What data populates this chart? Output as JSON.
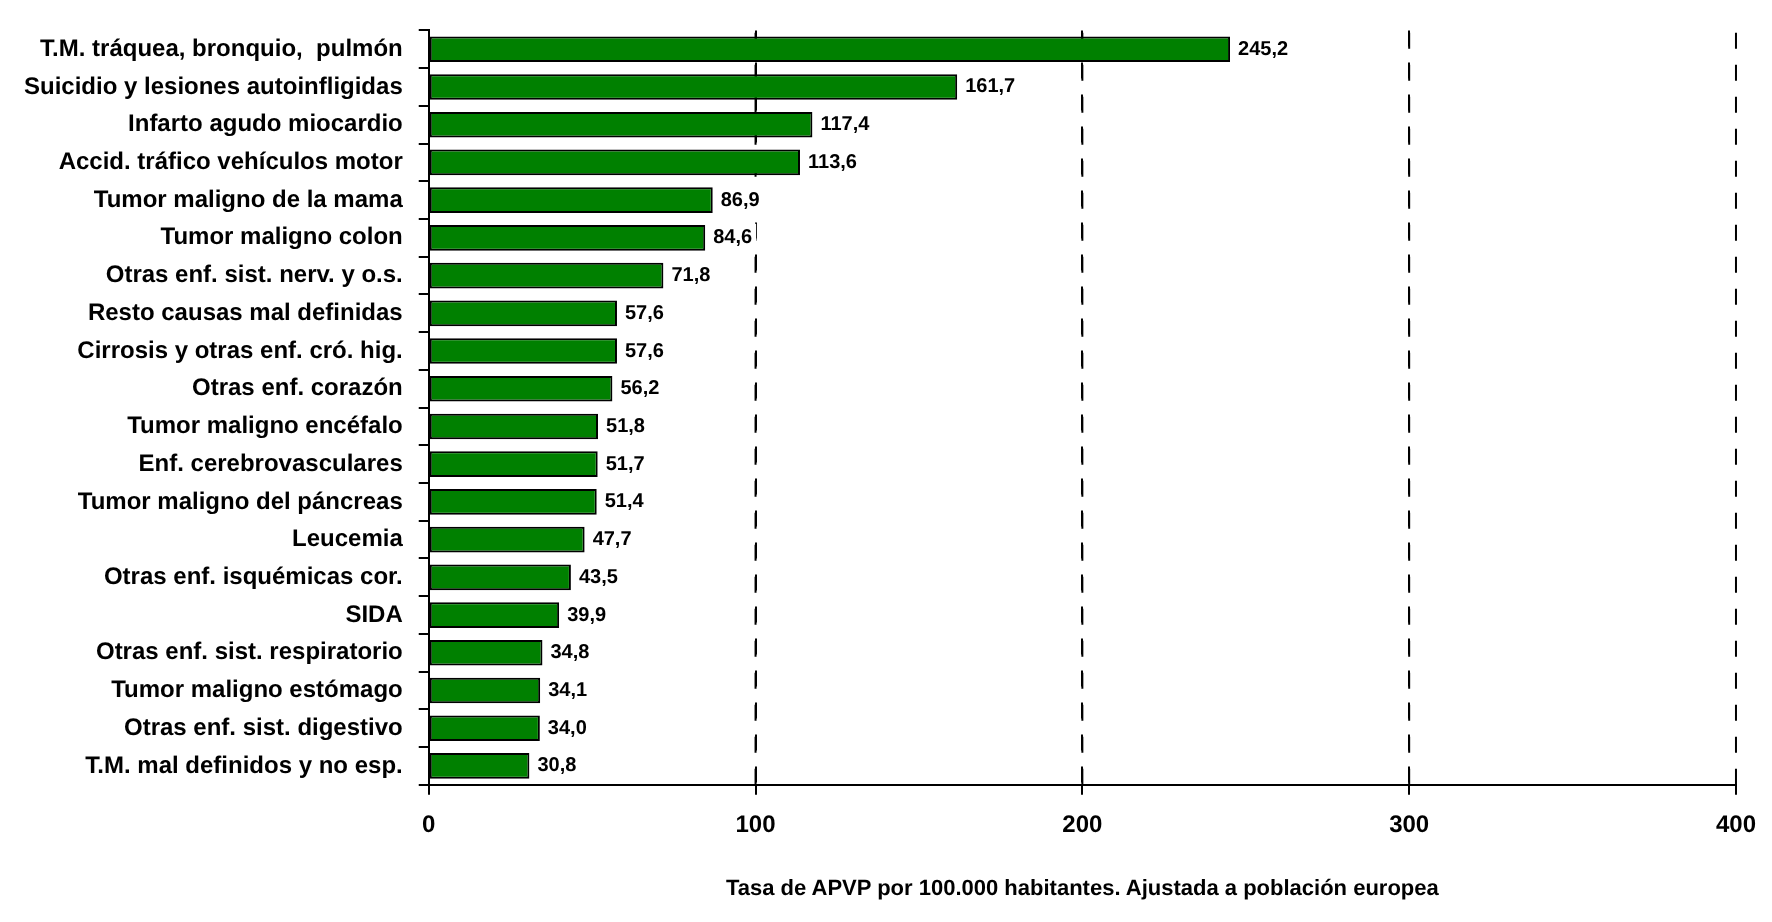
{
  "chart_data": {
    "type": "bar",
    "orientation": "horizontal",
    "xlabel": "Tasa de APVP por 100.000 habitantes. Ajustada a población europea",
    "categories": [
      "T.M. tráquea, bronquio,  pulmón",
      "Suicidio y lesiones autoinfligidas",
      "Infarto agudo miocardio",
      "Accid. tráfico vehículos motor",
      "Tumor maligno de la mama",
      "Tumor maligno colon",
      "Otras enf. sist. nerv. y o.s.",
      "Resto causas mal definidas",
      "Cirrosis y otras enf. cró. hig.",
      "Otras enf. corazón",
      "Tumor maligno encéfalo",
      "Enf. cerebrovasculares",
      "Tumor maligno del páncreas",
      "Leucemia",
      "Otras enf. isquémicas cor.",
      "SIDA",
      "Otras enf. sist. respiratorio",
      "Tumor maligno estómago",
      "Otras enf. sist. digestivo",
      "T.M. mal definidos y no esp."
    ],
    "values": [
      245.2,
      161.7,
      117.4,
      113.6,
      86.9,
      84.6,
      71.8,
      57.6,
      57.6,
      56.2,
      51.8,
      51.7,
      51.4,
      47.7,
      43.5,
      39.9,
      34.8,
      34.1,
      34.0,
      30.8
    ],
    "value_labels": [
      "245,2",
      "161,7",
      "117,4",
      "113,6",
      "86,9",
      "84,6",
      "71,8",
      "57,6",
      "57,6",
      "56,2",
      "51,8",
      "51,7",
      "51,4",
      "47,7",
      "43,5",
      "39,9",
      "34,8",
      "34,1",
      "34,0",
      "30,8"
    ],
    "color": "#008000",
    "xlim": [
      0,
      400
    ],
    "xticks": [
      0,
      100,
      200,
      300,
      400
    ],
    "grid": "x"
  }
}
